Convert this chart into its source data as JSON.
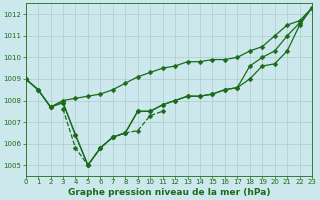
{
  "title": "Graphe pression niveau de la mer (hPa)",
  "background_color": "#cce8ec",
  "grid_color": "#aacccc",
  "line_color": "#1a6b1a",
  "xlim": [
    0,
    23
  ],
  "ylim": [
    1004.5,
    1012.5
  ],
  "yticks": [
    1005,
    1006,
    1007,
    1008,
    1009,
    1010,
    1011,
    1012
  ],
  "xticks": [
    0,
    1,
    2,
    3,
    4,
    5,
    6,
    7,
    8,
    9,
    10,
    11,
    12,
    13,
    14,
    15,
    16,
    17,
    18,
    19,
    20,
    21,
    22,
    23
  ],
  "lines": [
    {
      "x": [
        0,
        1,
        2,
        3,
        4,
        5,
        6,
        7,
        8,
        9,
        10,
        11,
        12,
        13,
        14,
        15,
        16,
        17,
        18,
        19,
        20,
        21,
        22,
        23
      ],
      "y": [
        1009.0,
        1008.5,
        1007.7,
        1008.0,
        1008.1,
        1008.2,
        1008.3,
        1008.5,
        1008.8,
        1009.1,
        1009.3,
        1009.5,
        1009.6,
        1009.8,
        1009.8,
        1009.9,
        1009.9,
        1010.0,
        1010.3,
        1010.5,
        1011.0,
        1011.5,
        1011.7,
        1012.3
      ],
      "linestyle": "-",
      "marker": true
    },
    {
      "x": [
        0,
        1,
        2,
        3,
        4,
        5,
        6,
        7,
        8,
        9,
        10,
        11,
        12,
        13,
        14,
        15,
        16,
        17,
        18,
        19,
        20,
        21,
        22,
        23
      ],
      "y": [
        1009.0,
        1008.5,
        1007.7,
        1007.9,
        1006.4,
        1005.0,
        1005.8,
        1006.3,
        1006.5,
        1007.5,
        1007.5,
        1007.8,
        1008.0,
        1008.2,
        1008.2,
        1008.3,
        1008.5,
        1008.6,
        1009.0,
        1009.6,
        1009.7,
        1010.3,
        1011.5,
        1012.3
      ],
      "linestyle": "-",
      "marker": true
    },
    {
      "x": [
        0,
        1,
        2,
        3,
        4,
        5,
        6,
        7,
        8,
        9,
        10,
        11,
        12,
        13,
        14,
        15,
        16,
        17,
        18,
        19,
        20,
        21,
        22,
        23
      ],
      "y": [
        1009.0,
        1008.5,
        1007.7,
        1007.9,
        1006.4,
        1005.0,
        1005.8,
        1006.3,
        1006.5,
        1007.5,
        1007.5,
        1007.8,
        1008.0,
        1008.2,
        1008.2,
        1008.3,
        1008.5,
        1008.6,
        1009.6,
        1010.0,
        1010.3,
        1011.0,
        1011.6,
        1012.3
      ],
      "linestyle": "-",
      "marker": true
    },
    {
      "x": [
        3,
        4,
        5,
        6,
        7,
        8,
        9,
        10,
        11
      ],
      "y": [
        1007.6,
        1005.8,
        1005.0,
        1005.8,
        1006.3,
        1006.5,
        1006.6,
        1007.3,
        1007.5
      ],
      "linestyle": "--",
      "marker": true
    }
  ],
  "font_color": "#1a6b1a",
  "marker_size": 2.5,
  "linewidth": 0.9
}
